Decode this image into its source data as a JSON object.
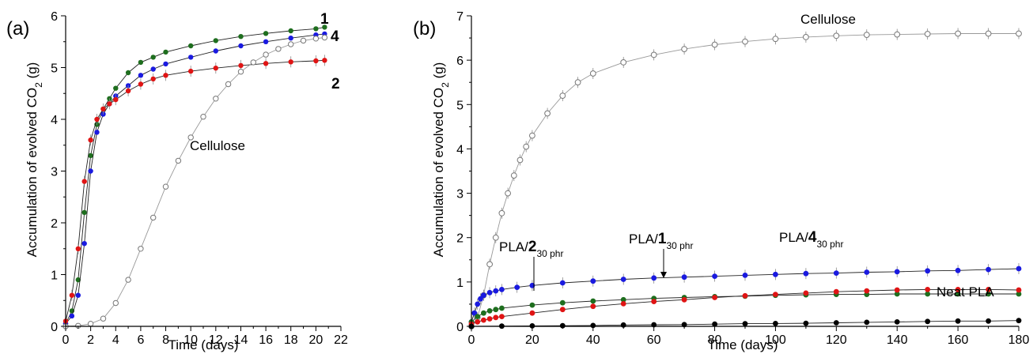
{
  "chart_data": [
    {
      "panel_label": "(a)",
      "type": "scatter",
      "xlabel": "Time (days)",
      "ylabel_main": "Accumulation of evolved CO",
      "ylabel_sub": "2",
      "ylabel_unit": " (g)",
      "xlim": [
        0,
        22
      ],
      "ylim": [
        0,
        6
      ],
      "xticks": [
        0,
        2,
        4,
        6,
        8,
        10,
        12,
        14,
        16,
        18,
        20,
        22
      ],
      "yticks": [
        0,
        1,
        2,
        3,
        4,
        5,
        6
      ],
      "grid": false,
      "series": [
        {
          "name": "1",
          "color": "#1e6e1e",
          "marker": "filled-circle",
          "x": [
            0,
            0.5,
            1,
            1.5,
            2,
            2.5,
            3,
            3.5,
            4,
            5,
            6,
            7,
            8,
            10,
            12,
            14,
            16,
            18,
            20,
            20.7
          ],
          "y": [
            0.05,
            0.3,
            0.9,
            2.2,
            3.3,
            3.9,
            4.2,
            4.4,
            4.6,
            4.9,
            5.1,
            5.2,
            5.3,
            5.42,
            5.52,
            5.6,
            5.66,
            5.71,
            5.75,
            5.78
          ]
        },
        {
          "name": "4",
          "color": "#1a1ae0",
          "marker": "filled-circle",
          "x": [
            0,
            0.5,
            1,
            1.5,
            2,
            2.5,
            3,
            3.5,
            4,
            5,
            6,
            7,
            8,
            10,
            12,
            14,
            16,
            18,
            20,
            20.7
          ],
          "y": [
            0.05,
            0.2,
            0.6,
            1.6,
            3.0,
            3.75,
            4.1,
            4.3,
            4.45,
            4.65,
            4.85,
            4.97,
            5.07,
            5.2,
            5.32,
            5.42,
            5.5,
            5.57,
            5.63,
            5.65
          ]
        },
        {
          "name": "2",
          "color": "#e01414",
          "marker": "filled-circle",
          "error_bars": true,
          "x": [
            0,
            0.5,
            1,
            1.5,
            2,
            2.5,
            3,
            3.5,
            4,
            5,
            6,
            7,
            8,
            10,
            12,
            14,
            16,
            18,
            20,
            20.7
          ],
          "y": [
            0.1,
            0.6,
            1.5,
            2.8,
            3.6,
            4.0,
            4.2,
            4.3,
            4.38,
            4.55,
            4.68,
            4.78,
            4.85,
            4.93,
            4.99,
            5.04,
            5.08,
            5.11,
            5.13,
            5.14
          ]
        },
        {
          "name": "Cellulose",
          "color": "#777777",
          "marker": "open-circle",
          "x": [
            0,
            1,
            2,
            3,
            4,
            5,
            6,
            7,
            8,
            9,
            10,
            11,
            12,
            13,
            14,
            15,
            16,
            17,
            18,
            19,
            20,
            20.7
          ],
          "y": [
            0,
            0.01,
            0.05,
            0.15,
            0.45,
            0.9,
            1.5,
            2.1,
            2.7,
            3.2,
            3.65,
            4.05,
            4.4,
            4.68,
            4.92,
            5.1,
            5.25,
            5.36,
            5.45,
            5.52,
            5.56,
            5.58
          ]
        }
      ],
      "annotations": [
        {
          "text": "1",
          "bold": true
        },
        {
          "text": "4",
          "bold": true
        },
        {
          "text": "2",
          "bold": true
        },
        {
          "text": "Cellulose",
          "bold": false
        }
      ]
    },
    {
      "panel_label": "(b)",
      "type": "scatter",
      "xlabel": "Time (days)",
      "ylabel_main": "Accumulation of evolved CO",
      "ylabel_sub": "2",
      "ylabel_unit": " (g)",
      "xlim": [
        0,
        180
      ],
      "ylim": [
        0,
        7
      ],
      "xticks": [
        0,
        20,
        40,
        60,
        80,
        100,
        120,
        140,
        160,
        180
      ],
      "yticks": [
        0,
        1,
        2,
        3,
        4,
        5,
        6,
        7
      ],
      "grid": false,
      "series": [
        {
          "name": "Cellulose",
          "color": "#777777",
          "marker": "open-circle",
          "error_bars": true,
          "x": [
            0,
            2,
            4,
            6,
            8,
            10,
            12,
            14,
            16,
            18,
            20,
            25,
            30,
            35,
            40,
            50,
            60,
            70,
            80,
            90,
            100,
            110,
            120,
            130,
            140,
            150,
            160,
            170,
            180
          ],
          "y": [
            0,
            0.2,
            0.7,
            1.4,
            2.0,
            2.55,
            3.0,
            3.4,
            3.75,
            4.05,
            4.3,
            4.8,
            5.2,
            5.5,
            5.7,
            5.95,
            6.12,
            6.25,
            6.35,
            6.42,
            6.48,
            6.52,
            6.55,
            6.57,
            6.58,
            6.59,
            6.6,
            6.6,
            6.6
          ]
        },
        {
          "name": "PLA/4 30 phr",
          "color": "#1a1ae0",
          "marker": "filled-circle",
          "error_bars": true,
          "x": [
            0,
            1,
            2,
            3,
            4,
            6,
            8,
            10,
            15,
            20,
            30,
            40,
            50,
            60,
            70,
            80,
            90,
            100,
            110,
            120,
            130,
            140,
            150,
            160,
            170,
            180
          ],
          "y": [
            0.1,
            0.3,
            0.5,
            0.62,
            0.7,
            0.76,
            0.8,
            0.83,
            0.88,
            0.92,
            0.98,
            1.02,
            1.06,
            1.09,
            1.11,
            1.13,
            1.15,
            1.17,
            1.19,
            1.2,
            1.22,
            1.23,
            1.25,
            1.26,
            1.28,
            1.3
          ]
        },
        {
          "name": "PLA/1 30 phr",
          "color": "#1e6e1e",
          "marker": "filled-circle",
          "x": [
            0,
            2,
            4,
            6,
            8,
            10,
            20,
            30,
            40,
            50,
            60,
            70,
            80,
            90,
            100,
            110,
            120,
            130,
            140,
            150,
            160,
            170,
            180
          ],
          "y": [
            0.1,
            0.22,
            0.3,
            0.35,
            0.38,
            0.41,
            0.48,
            0.53,
            0.57,
            0.6,
            0.63,
            0.65,
            0.67,
            0.68,
            0.7,
            0.71,
            0.72,
            0.72,
            0.73,
            0.73,
            0.73,
            0.73,
            0.73
          ]
        },
        {
          "name": "PLA/2 30 phr",
          "color": "#e01414",
          "marker": "filled-circle",
          "x": [
            0,
            2,
            4,
            6,
            8,
            10,
            20,
            30,
            40,
            50,
            60,
            70,
            80,
            90,
            100,
            110,
            120,
            130,
            140,
            150,
            160,
            170,
            180
          ],
          "y": [
            0.05,
            0.1,
            0.14,
            0.17,
            0.2,
            0.22,
            0.3,
            0.38,
            0.45,
            0.51,
            0.56,
            0.6,
            0.65,
            0.69,
            0.72,
            0.75,
            0.78,
            0.8,
            0.82,
            0.83,
            0.83,
            0.83,
            0.82
          ]
        },
        {
          "name": "Neat PLA",
          "color": "#000000",
          "marker": "filled-circle",
          "x": [
            0,
            10,
            20,
            30,
            40,
            50,
            60,
            70,
            80,
            90,
            100,
            110,
            120,
            130,
            140,
            150,
            160,
            170,
            180
          ],
          "y": [
            0,
            0.005,
            0.01,
            0.015,
            0.02,
            0.03,
            0.035,
            0.04,
            0.05,
            0.06,
            0.065,
            0.07,
            0.08,
            0.09,
            0.1,
            0.11,
            0.12,
            0.12,
            0.13
          ]
        }
      ],
      "annotations": [
        {
          "text": "Cellulose",
          "bold": false
        },
        {
          "prefix": "PLA/",
          "num": "2",
          "sub": "30 phr"
        },
        {
          "prefix": "PLA/",
          "num": "1",
          "sub": "30 phr"
        },
        {
          "prefix": "PLA/",
          "num": "4",
          "sub": "30 phr"
        },
        {
          "text": "Neat PLA",
          "bold": false
        }
      ]
    }
  ]
}
